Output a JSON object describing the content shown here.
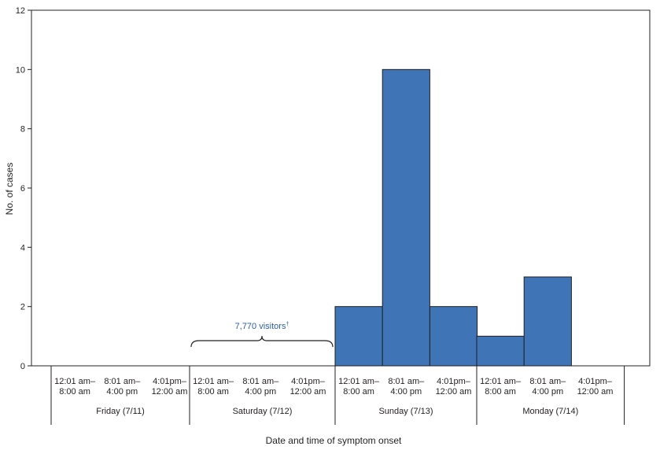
{
  "chart_data": {
    "type": "bar",
    "title": "",
    "xlabel": "Date and time of symptom onset",
    "ylabel": "No. of cases",
    "ylim": [
      0,
      12
    ],
    "y_ticks": [
      0,
      2,
      4,
      6,
      8,
      10,
      12
    ],
    "days": [
      {
        "label": "Friday (7/11)",
        "periods": [
          {
            "line1": "12:01 am–",
            "line2": "8:00 am",
            "value": 0
          },
          {
            "line1": "8:01 am–",
            "line2": "4:00 pm",
            "value": 0
          },
          {
            "line1": "4:01pm–",
            "line2": "12:00 am",
            "value": 0
          }
        ]
      },
      {
        "label": "Saturday (7/12)",
        "periods": [
          {
            "line1": "12:01 am–",
            "line2": "8:00 am",
            "value": 0
          },
          {
            "line1": "8:01 am–",
            "line2": "4:00 pm",
            "value": 0
          },
          {
            "line1": "4:01pm–",
            "line2": "12:00 am",
            "value": 0
          }
        ]
      },
      {
        "label": "Sunday (7/13)",
        "periods": [
          {
            "line1": "12:01 am–",
            "line2": "8:00 am",
            "value": 2
          },
          {
            "line1": "8:01 am–",
            "line2": "4:00 pm",
            "value": 10
          },
          {
            "line1": "4:01pm–",
            "line2": "12:00 am",
            "value": 2
          }
        ]
      },
      {
        "label": "Monday (7/14)",
        "periods": [
          {
            "line1": "12:01 am–",
            "line2": "8:00 am",
            "value": 1
          },
          {
            "line1": "8:01 am–",
            "line2": "4:00 pm",
            "value": 3
          },
          {
            "line1": "4:01pm–",
            "line2": "12:00 am",
            "value": 0
          }
        ]
      }
    ],
    "annotation": {
      "text": "7,770 visitors",
      "marker": "†",
      "day_span": [
        1,
        2
      ]
    },
    "bar_color": "#3f75b6",
    "text_color": "#231f20",
    "annotation_color": "#2e5f9e"
  }
}
